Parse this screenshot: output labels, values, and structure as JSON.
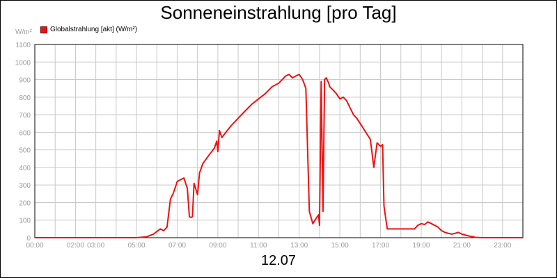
{
  "chart_data": {
    "type": "line",
    "title": "Sonneneinstrahlung [pro Tag]",
    "ylabel": "W/m²",
    "xlabel": "12.07",
    "ylim": [
      0,
      1100
    ],
    "xlim": [
      0,
      24
    ],
    "grid": true,
    "legend_position": "top-left",
    "y_ticks": [
      "0",
      "100",
      "200",
      "300",
      "400",
      "500",
      "600",
      "700",
      "800",
      "900",
      "1000",
      "1100"
    ],
    "x_ticks": [
      {
        "x": 0,
        "label": "00:00"
      },
      {
        "x": 2,
        "label": "02:00"
      },
      {
        "x": 3,
        "label": "03:00"
      },
      {
        "x": 5,
        "label": "05:00"
      },
      {
        "x": 7,
        "label": "07:00"
      },
      {
        "x": 9,
        "label": "09:00"
      },
      {
        "x": 11,
        "label": "11:00"
      },
      {
        "x": 13,
        "label": "13:00"
      },
      {
        "x": 15,
        "label": "15:00"
      },
      {
        "x": 17,
        "label": "17:00"
      },
      {
        "x": 19,
        "label": "19:00"
      },
      {
        "x": 21,
        "label": "21:00"
      },
      {
        "x": 23,
        "label": "23:00"
      }
    ],
    "series": [
      {
        "name": "Globalstrahlung [akt] (W/m²)",
        "color": "#ee1111",
        "x": [
          0,
          5.0,
          5.5,
          5.83,
          6.17,
          6.33,
          6.5,
          6.67,
          6.8,
          6.95,
          7.0,
          7.33,
          7.5,
          7.6,
          7.67,
          7.75,
          7.83,
          8.0,
          8.1,
          8.17,
          8.25,
          8.5,
          8.83,
          8.95,
          9.0,
          9.08,
          9.2,
          9.33,
          9.67,
          10.0,
          10.33,
          10.67,
          11.0,
          11.33,
          11.67,
          12.0,
          12.33,
          12.5,
          12.67,
          12.83,
          13.0,
          13.17,
          13.33,
          13.5,
          13.67,
          13.83,
          13.95,
          14.0,
          14.08,
          14.17,
          14.25,
          14.33,
          14.45,
          14.5,
          14.58,
          14.67,
          14.83,
          15.0,
          15.17,
          15.33,
          15.5,
          15.67,
          15.83,
          16.0,
          16.17,
          16.33,
          16.5,
          16.67,
          16.83,
          17.0,
          17.1,
          17.17,
          17.33,
          17.5,
          17.58,
          17.67,
          18.0,
          18.33,
          18.67,
          18.83,
          19.0,
          19.17,
          19.33,
          19.5,
          19.67,
          19.83,
          20.0,
          20.17,
          20.33,
          20.5,
          20.67,
          20.83,
          21.0,
          21.33,
          21.67,
          22.0,
          24.0
        ],
        "values": [
          0,
          0,
          5,
          20,
          50,
          40,
          60,
          220,
          250,
          300,
          320,
          340,
          280,
          120,
          115,
          120,
          310,
          245,
          370,
          390,
          420,
          460,
          510,
          550,
          490,
          610,
          570,
          590,
          640,
          680,
          720,
          760,
          790,
          820,
          860,
          880,
          920,
          930,
          910,
          920,
          930,
          900,
          850,
          150,
          80,
          110,
          130,
          70,
          890,
          150,
          900,
          910,
          880,
          860,
          850,
          840,
          820,
          790,
          800,
          780,
          740,
          700,
          680,
          650,
          620,
          590,
          560,
          400,
          540,
          520,
          530,
          180,
          50,
          50,
          50,
          50,
          50,
          50,
          50,
          70,
          80,
          75,
          90,
          80,
          70,
          60,
          40,
          30,
          25,
          20,
          25,
          30,
          20,
          10,
          2,
          0,
          0
        ]
      }
    ]
  }
}
